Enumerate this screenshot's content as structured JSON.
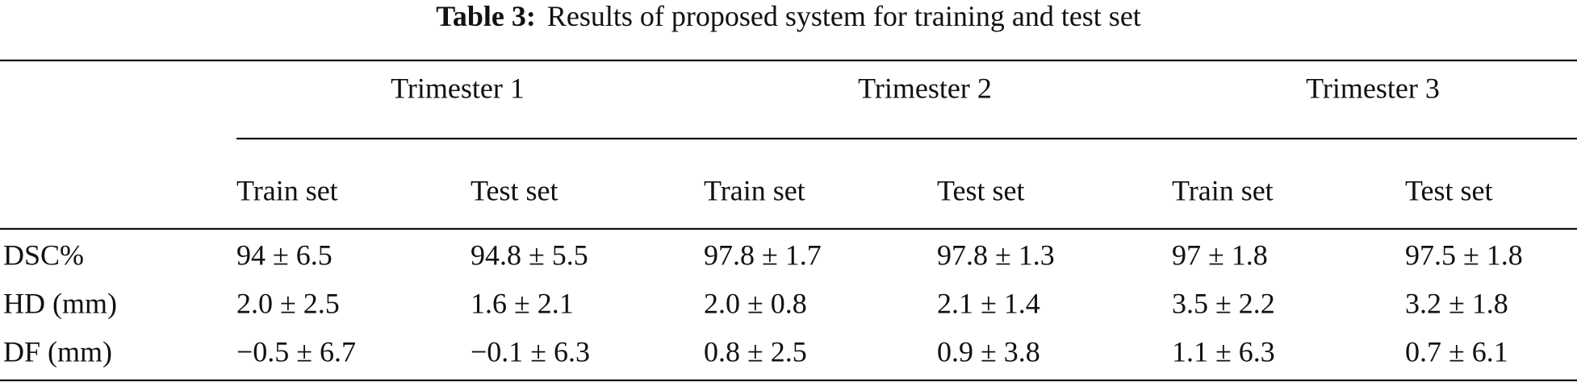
{
  "caption": {
    "label": "Table 3:",
    "text": "Results of proposed system for training and test set"
  },
  "table": {
    "groups": [
      "Trimester 1",
      "Trimester 2",
      "Trimester 3"
    ],
    "subheaders": [
      "Train set",
      "Test set",
      "Train set",
      "Test set",
      "Train set",
      "Test set"
    ],
    "rows": [
      [
        "DSC%",
        "94 ± 6.5",
        "94.8 ± 5.5",
        "97.8 ± 1.7",
        "97.8 ± 1.3",
        "97 ± 1.8",
        "97.5 ± 1.8"
      ],
      [
        "HD (mm)",
        "2.0 ± 2.5",
        "1.6 ± 2.1",
        "2.0 ± 0.8",
        "2.1 ± 1.4",
        "3.5 ± 2.2",
        "3.2 ± 1.8"
      ],
      [
        "DF (mm)",
        "−0.5 ± 6.7",
        "−0.1 ± 6.3",
        "0.8 ± 2.5",
        "0.9 ± 3.8",
        "1.1 ± 6.3",
        "0.7 ± 6.1"
      ]
    ]
  }
}
